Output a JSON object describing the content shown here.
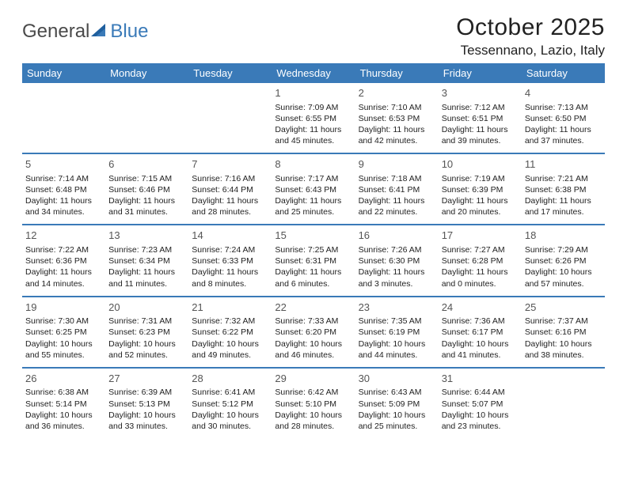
{
  "logo": {
    "text1": "General",
    "text2": "Blue"
  },
  "title": "October 2025",
  "location": "Tessennano, Lazio, Italy",
  "header_bg": "#3a7ab8",
  "dayNames": [
    "Sunday",
    "Monday",
    "Tuesday",
    "Wednesday",
    "Thursday",
    "Friday",
    "Saturday"
  ],
  "weeks": [
    [
      null,
      null,
      null,
      {
        "n": "1",
        "sr": "7:09 AM",
        "ss": "6:55 PM",
        "dl": "11 hours and 45 minutes."
      },
      {
        "n": "2",
        "sr": "7:10 AM",
        "ss": "6:53 PM",
        "dl": "11 hours and 42 minutes."
      },
      {
        "n": "3",
        "sr": "7:12 AM",
        "ss": "6:51 PM",
        "dl": "11 hours and 39 minutes."
      },
      {
        "n": "4",
        "sr": "7:13 AM",
        "ss": "6:50 PM",
        "dl": "11 hours and 37 minutes."
      }
    ],
    [
      {
        "n": "5",
        "sr": "7:14 AM",
        "ss": "6:48 PM",
        "dl": "11 hours and 34 minutes."
      },
      {
        "n": "6",
        "sr": "7:15 AM",
        "ss": "6:46 PM",
        "dl": "11 hours and 31 minutes."
      },
      {
        "n": "7",
        "sr": "7:16 AM",
        "ss": "6:44 PM",
        "dl": "11 hours and 28 minutes."
      },
      {
        "n": "8",
        "sr": "7:17 AM",
        "ss": "6:43 PM",
        "dl": "11 hours and 25 minutes."
      },
      {
        "n": "9",
        "sr": "7:18 AM",
        "ss": "6:41 PM",
        "dl": "11 hours and 22 minutes."
      },
      {
        "n": "10",
        "sr": "7:19 AM",
        "ss": "6:39 PM",
        "dl": "11 hours and 20 minutes."
      },
      {
        "n": "11",
        "sr": "7:21 AM",
        "ss": "6:38 PM",
        "dl": "11 hours and 17 minutes."
      }
    ],
    [
      {
        "n": "12",
        "sr": "7:22 AM",
        "ss": "6:36 PM",
        "dl": "11 hours and 14 minutes."
      },
      {
        "n": "13",
        "sr": "7:23 AM",
        "ss": "6:34 PM",
        "dl": "11 hours and 11 minutes."
      },
      {
        "n": "14",
        "sr": "7:24 AM",
        "ss": "6:33 PM",
        "dl": "11 hours and 8 minutes."
      },
      {
        "n": "15",
        "sr": "7:25 AM",
        "ss": "6:31 PM",
        "dl": "11 hours and 6 minutes."
      },
      {
        "n": "16",
        "sr": "7:26 AM",
        "ss": "6:30 PM",
        "dl": "11 hours and 3 minutes."
      },
      {
        "n": "17",
        "sr": "7:27 AM",
        "ss": "6:28 PM",
        "dl": "11 hours and 0 minutes."
      },
      {
        "n": "18",
        "sr": "7:29 AM",
        "ss": "6:26 PM",
        "dl": "10 hours and 57 minutes."
      }
    ],
    [
      {
        "n": "19",
        "sr": "7:30 AM",
        "ss": "6:25 PM",
        "dl": "10 hours and 55 minutes."
      },
      {
        "n": "20",
        "sr": "7:31 AM",
        "ss": "6:23 PM",
        "dl": "10 hours and 52 minutes."
      },
      {
        "n": "21",
        "sr": "7:32 AM",
        "ss": "6:22 PM",
        "dl": "10 hours and 49 minutes."
      },
      {
        "n": "22",
        "sr": "7:33 AM",
        "ss": "6:20 PM",
        "dl": "10 hours and 46 minutes."
      },
      {
        "n": "23",
        "sr": "7:35 AM",
        "ss": "6:19 PM",
        "dl": "10 hours and 44 minutes."
      },
      {
        "n": "24",
        "sr": "7:36 AM",
        "ss": "6:17 PM",
        "dl": "10 hours and 41 minutes."
      },
      {
        "n": "25",
        "sr": "7:37 AM",
        "ss": "6:16 PM",
        "dl": "10 hours and 38 minutes."
      }
    ],
    [
      {
        "n": "26",
        "sr": "6:38 AM",
        "ss": "5:14 PM",
        "dl": "10 hours and 36 minutes."
      },
      {
        "n": "27",
        "sr": "6:39 AM",
        "ss": "5:13 PM",
        "dl": "10 hours and 33 minutes."
      },
      {
        "n": "28",
        "sr": "6:41 AM",
        "ss": "5:12 PM",
        "dl": "10 hours and 30 minutes."
      },
      {
        "n": "29",
        "sr": "6:42 AM",
        "ss": "5:10 PM",
        "dl": "10 hours and 28 minutes."
      },
      {
        "n": "30",
        "sr": "6:43 AM",
        "ss": "5:09 PM",
        "dl": "10 hours and 25 minutes."
      },
      {
        "n": "31",
        "sr": "6:44 AM",
        "ss": "5:07 PM",
        "dl": "10 hours and 23 minutes."
      },
      null
    ]
  ],
  "labels": {
    "sunrise": "Sunrise:",
    "sunset": "Sunset:",
    "daylight": "Daylight:"
  }
}
